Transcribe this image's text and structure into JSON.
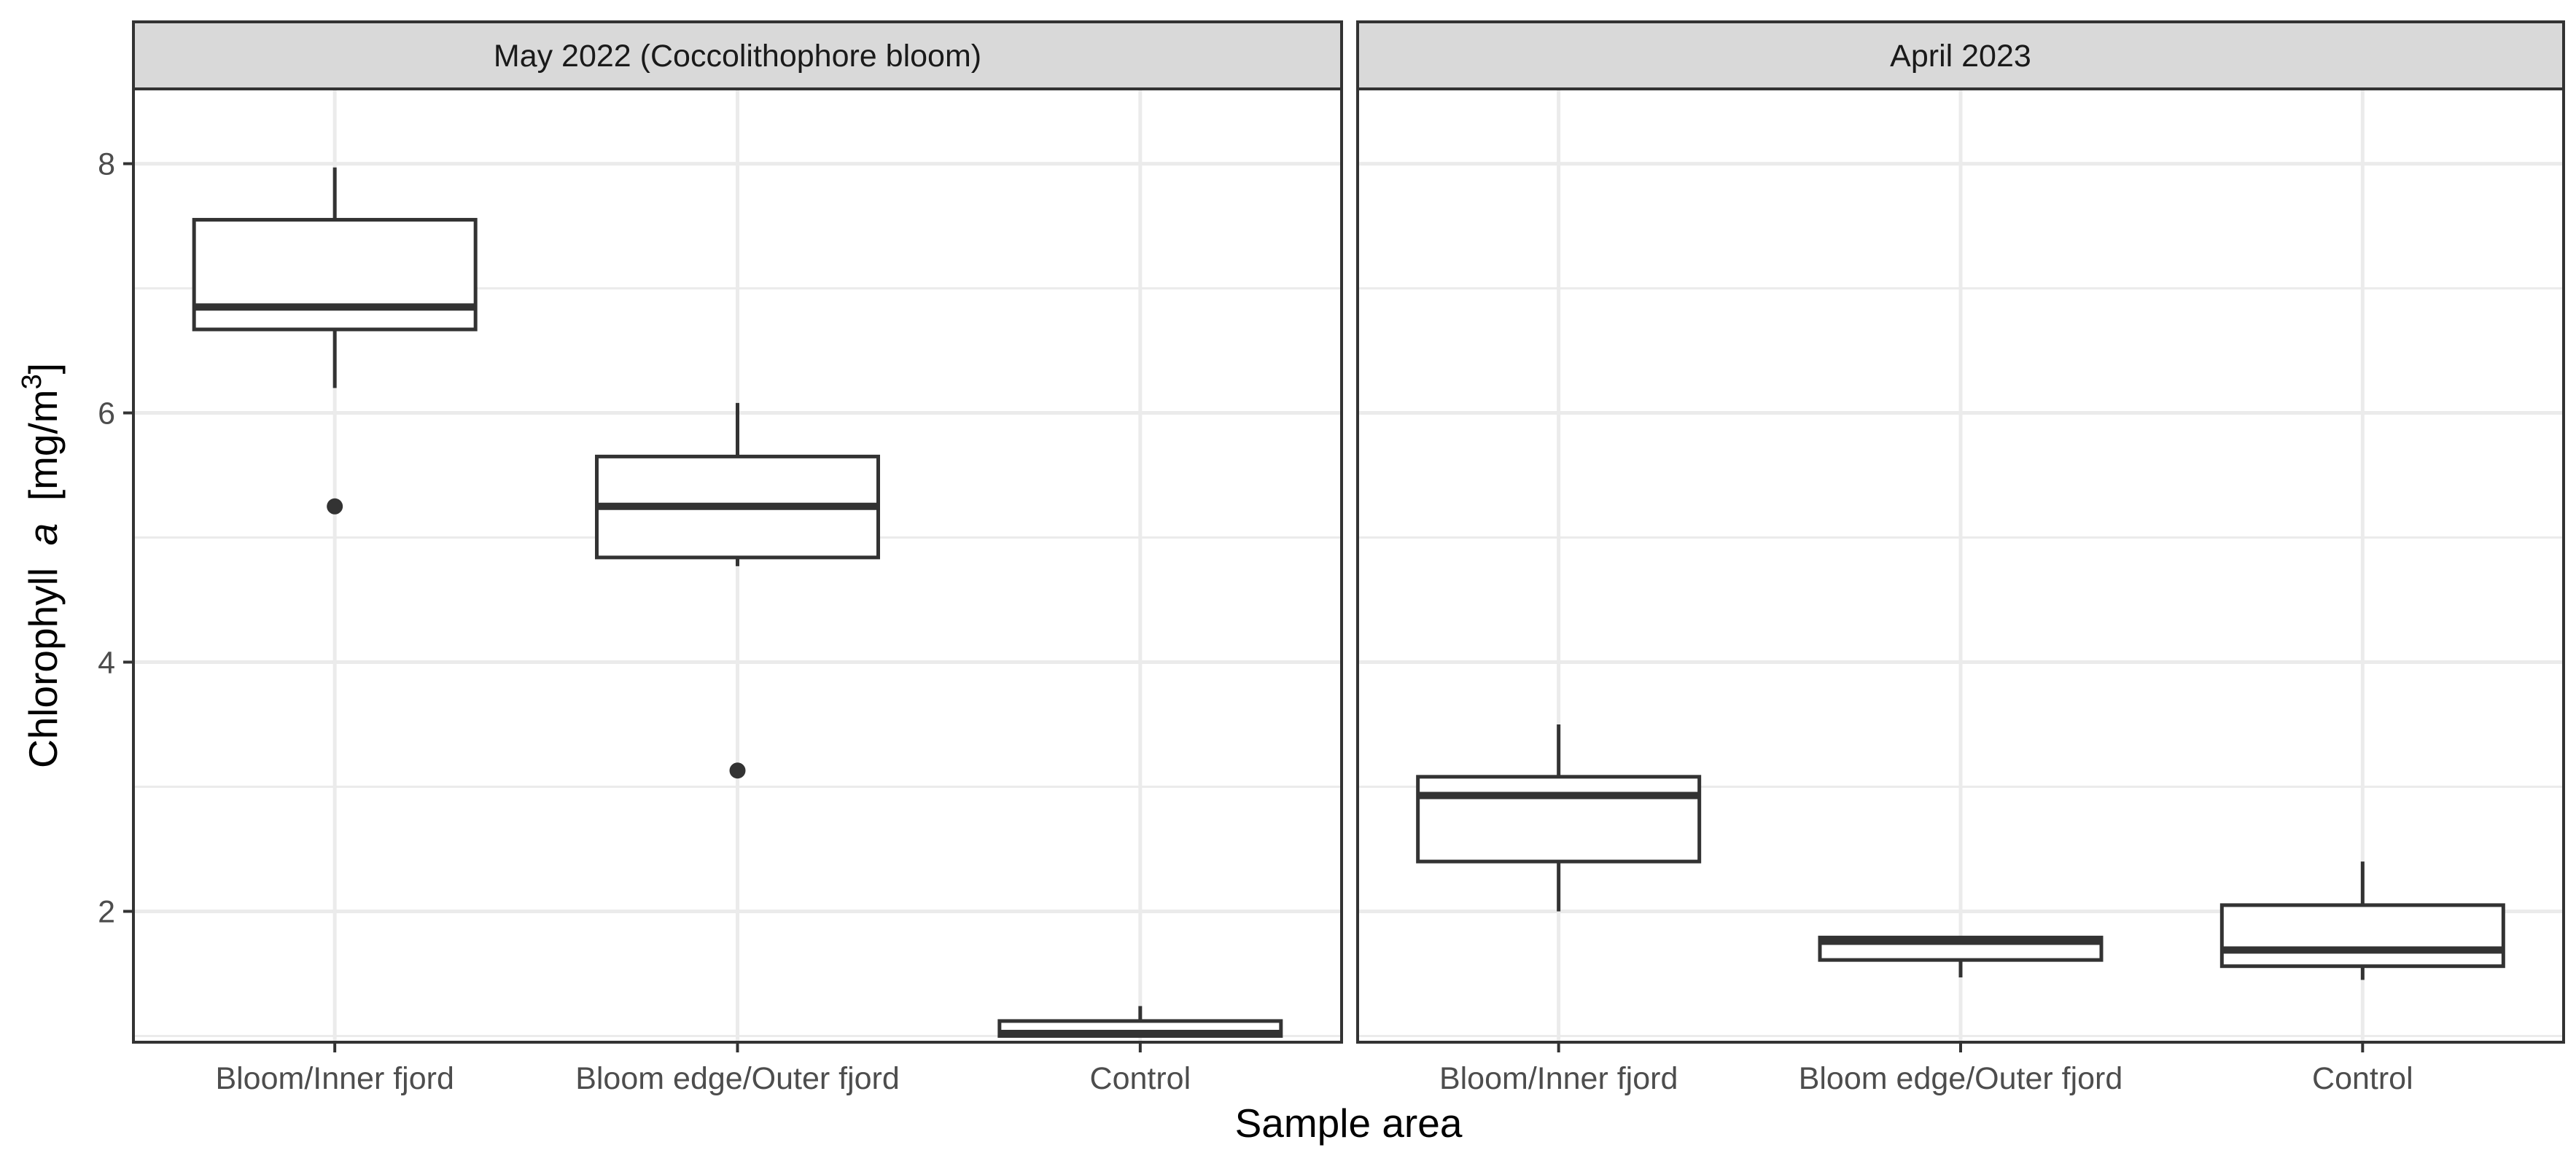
{
  "chart_data": {
    "type": "boxplot",
    "xlabel": "Sample area",
    "ylabel": {
      "prefix": "Chlorophyll",
      "italic": "a",
      "unit_open": "[mg/m",
      "unit_sup": "3",
      "unit_close": "]"
    },
    "ylim": [
      0.95,
      8.6
    ],
    "y_ticks": [
      2,
      4,
      6,
      8
    ],
    "y_tick_labels": [
      "2",
      "4",
      "6",
      "8"
    ],
    "y_minor_ticks": [
      1,
      3,
      5,
      7
    ],
    "grid": true,
    "categories": [
      "Bloom/Inner fjord",
      "Bloom edge/Outer fjord",
      "Control"
    ],
    "colors": {
      "box_stroke": "#333333",
      "box_fill": "#ffffff",
      "grid": "#ebebeb",
      "strip_fill": "#d9d9d9",
      "panel_border": "#333333"
    },
    "panels": [
      {
        "title": "May 2022 (Coccolithophore bloom)",
        "boxes": [
          {
            "category": "Bloom/Inner fjord",
            "whisker_low": 6.2,
            "q1": 6.67,
            "median": 6.85,
            "q3": 7.55,
            "whisker_high": 7.97,
            "outliers": [
              5.25
            ]
          },
          {
            "category": "Bloom edge/Outer fjord",
            "whisker_low": 4.77,
            "q1": 4.84,
            "median": 5.25,
            "q3": 5.65,
            "whisker_high": 6.08,
            "outliers": [
              3.13
            ]
          },
          {
            "category": "Control",
            "whisker_low": 1.0,
            "q1": 1.0,
            "median": 1.02,
            "q3": 1.12,
            "whisker_high": 1.24,
            "outliers": []
          }
        ]
      },
      {
        "title": "April 2023",
        "boxes": [
          {
            "category": "Bloom/Inner fjord",
            "whisker_low": 2.0,
            "q1": 2.4,
            "median": 2.93,
            "q3": 3.08,
            "whisker_high": 3.5,
            "outliers": []
          },
          {
            "category": "Bloom edge/Outer fjord",
            "whisker_low": 1.47,
            "q1": 1.61,
            "median": 1.76,
            "q3": 1.79,
            "whisker_high": 1.79,
            "outliers": []
          },
          {
            "category": "Control",
            "whisker_low": 1.45,
            "q1": 1.56,
            "median": 1.69,
            "q3": 2.05,
            "whisker_high": 2.4,
            "outliers": []
          }
        ]
      }
    ]
  }
}
